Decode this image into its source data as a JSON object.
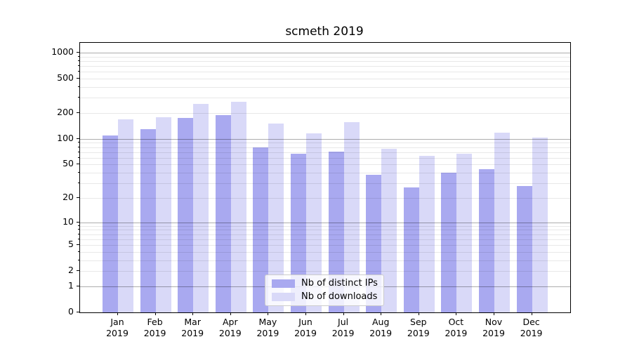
{
  "title": "scmeth 2019",
  "colors": {
    "bar_distinct_ips": "#a9a9f0",
    "bar_downloads": "#d9d9f8",
    "major_gridline": "#aaaaaa",
    "minor_gridline": "#e8e8e8",
    "axis_spine": "#000000",
    "legend_border": "#cccccc"
  },
  "chart_data": {
    "type": "bar",
    "title": "scmeth 2019",
    "months": [
      "Jan",
      "Feb",
      "Mar",
      "Apr",
      "May",
      "Jun",
      "Jul",
      "Aug",
      "Sep",
      "Oct",
      "Nov",
      "Dec"
    ],
    "year": "2019",
    "categories": [
      "Jan 2019",
      "Feb 2019",
      "Mar 2019",
      "Apr 2019",
      "May 2019",
      "Jun 2019",
      "Jul 2019",
      "Aug 2019",
      "Sep 2019",
      "Oct 2019",
      "Nov 2019",
      "Dec 2019"
    ],
    "series": [
      {
        "name": "Nb of distinct IPs",
        "color": "#a9a9f0",
        "values": [
          110,
          130,
          176,
          190,
          79,
          67,
          71,
          38,
          27,
          40,
          44,
          28
        ]
      },
      {
        "name": "Nb of downloads",
        "color": "#d9d9f8",
        "values": [
          170,
          180,
          255,
          272,
          150,
          117,
          158,
          77,
          63,
          67,
          118,
          104
        ]
      }
    ],
    "y_scale": "log10(1+v)",
    "y_tick_labels": [
      0,
      1,
      2,
      5,
      10,
      20,
      50,
      100,
      200,
      500,
      1000
    ],
    "y_major_gridlines": [
      1,
      10,
      100,
      1000
    ],
    "ylim": [
      0,
      1100
    ],
    "xlabel": "",
    "ylabel": "",
    "grid": "horizontal",
    "legend_position": "bottom-center"
  }
}
